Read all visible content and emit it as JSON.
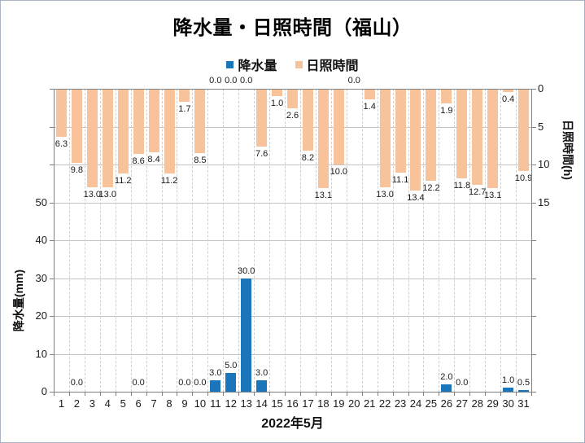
{
  "title": "降水量・日照時間（福山）",
  "colors": {
    "precipitation": "#1B75BB",
    "sunshine": "#F8C39A",
    "gridline": "#C3C3C3",
    "gridline_dashed": "#CFCFCF",
    "axis": "#808080",
    "text": "#1A1A1A",
    "border": "#AAB4C0"
  },
  "chart_data": {
    "type": "bar",
    "title": "降水量・日照時間（福山）",
    "x_title": "2022年5月",
    "legend_position": "top",
    "grid": true,
    "categories": [
      1,
      2,
      3,
      4,
      5,
      6,
      7,
      8,
      9,
      10,
      11,
      12,
      13,
      14,
      15,
      16,
      17,
      18,
      19,
      20,
      21,
      22,
      23,
      24,
      25,
      26,
      27,
      28,
      29,
      30,
      31
    ],
    "series": [
      {
        "name": "降水量",
        "axis": "left",
        "color": "#1B75BB",
        "values": [
          null,
          0.0,
          null,
          null,
          null,
          0.0,
          null,
          null,
          0.0,
          0.0,
          3.0,
          5.0,
          30.0,
          3.0,
          null,
          null,
          null,
          null,
          null,
          null,
          null,
          null,
          null,
          null,
          null,
          2.0,
          0.0,
          null,
          null,
          1.0,
          0.5
        ]
      },
      {
        "name": "日照時間",
        "axis": "right",
        "color": "#F8C39A",
        "values": [
          6.3,
          9.8,
          13.0,
          13.0,
          11.2,
          8.6,
          8.4,
          11.2,
          1.7,
          8.5,
          0.0,
          0.0,
          0.0,
          7.6,
          1.0,
          2.6,
          8.2,
          13.1,
          10.0,
          0.0,
          1.4,
          13.0,
          11.1,
          13.4,
          12.2,
          1.9,
          11.8,
          12.7,
          13.1,
          0.4,
          10.9
        ]
      }
    ],
    "left_axis": {
      "title": "降水量(mm)",
      "ticks": [
        0,
        10,
        20,
        30,
        40,
        50
      ],
      "range": [
        0,
        80
      ],
      "inverted": false
    },
    "right_axis": {
      "title": "日照時間(h)",
      "ticks": [
        0,
        5,
        10,
        15
      ],
      "range": [
        0,
        40
      ],
      "inverted": true
    }
  }
}
